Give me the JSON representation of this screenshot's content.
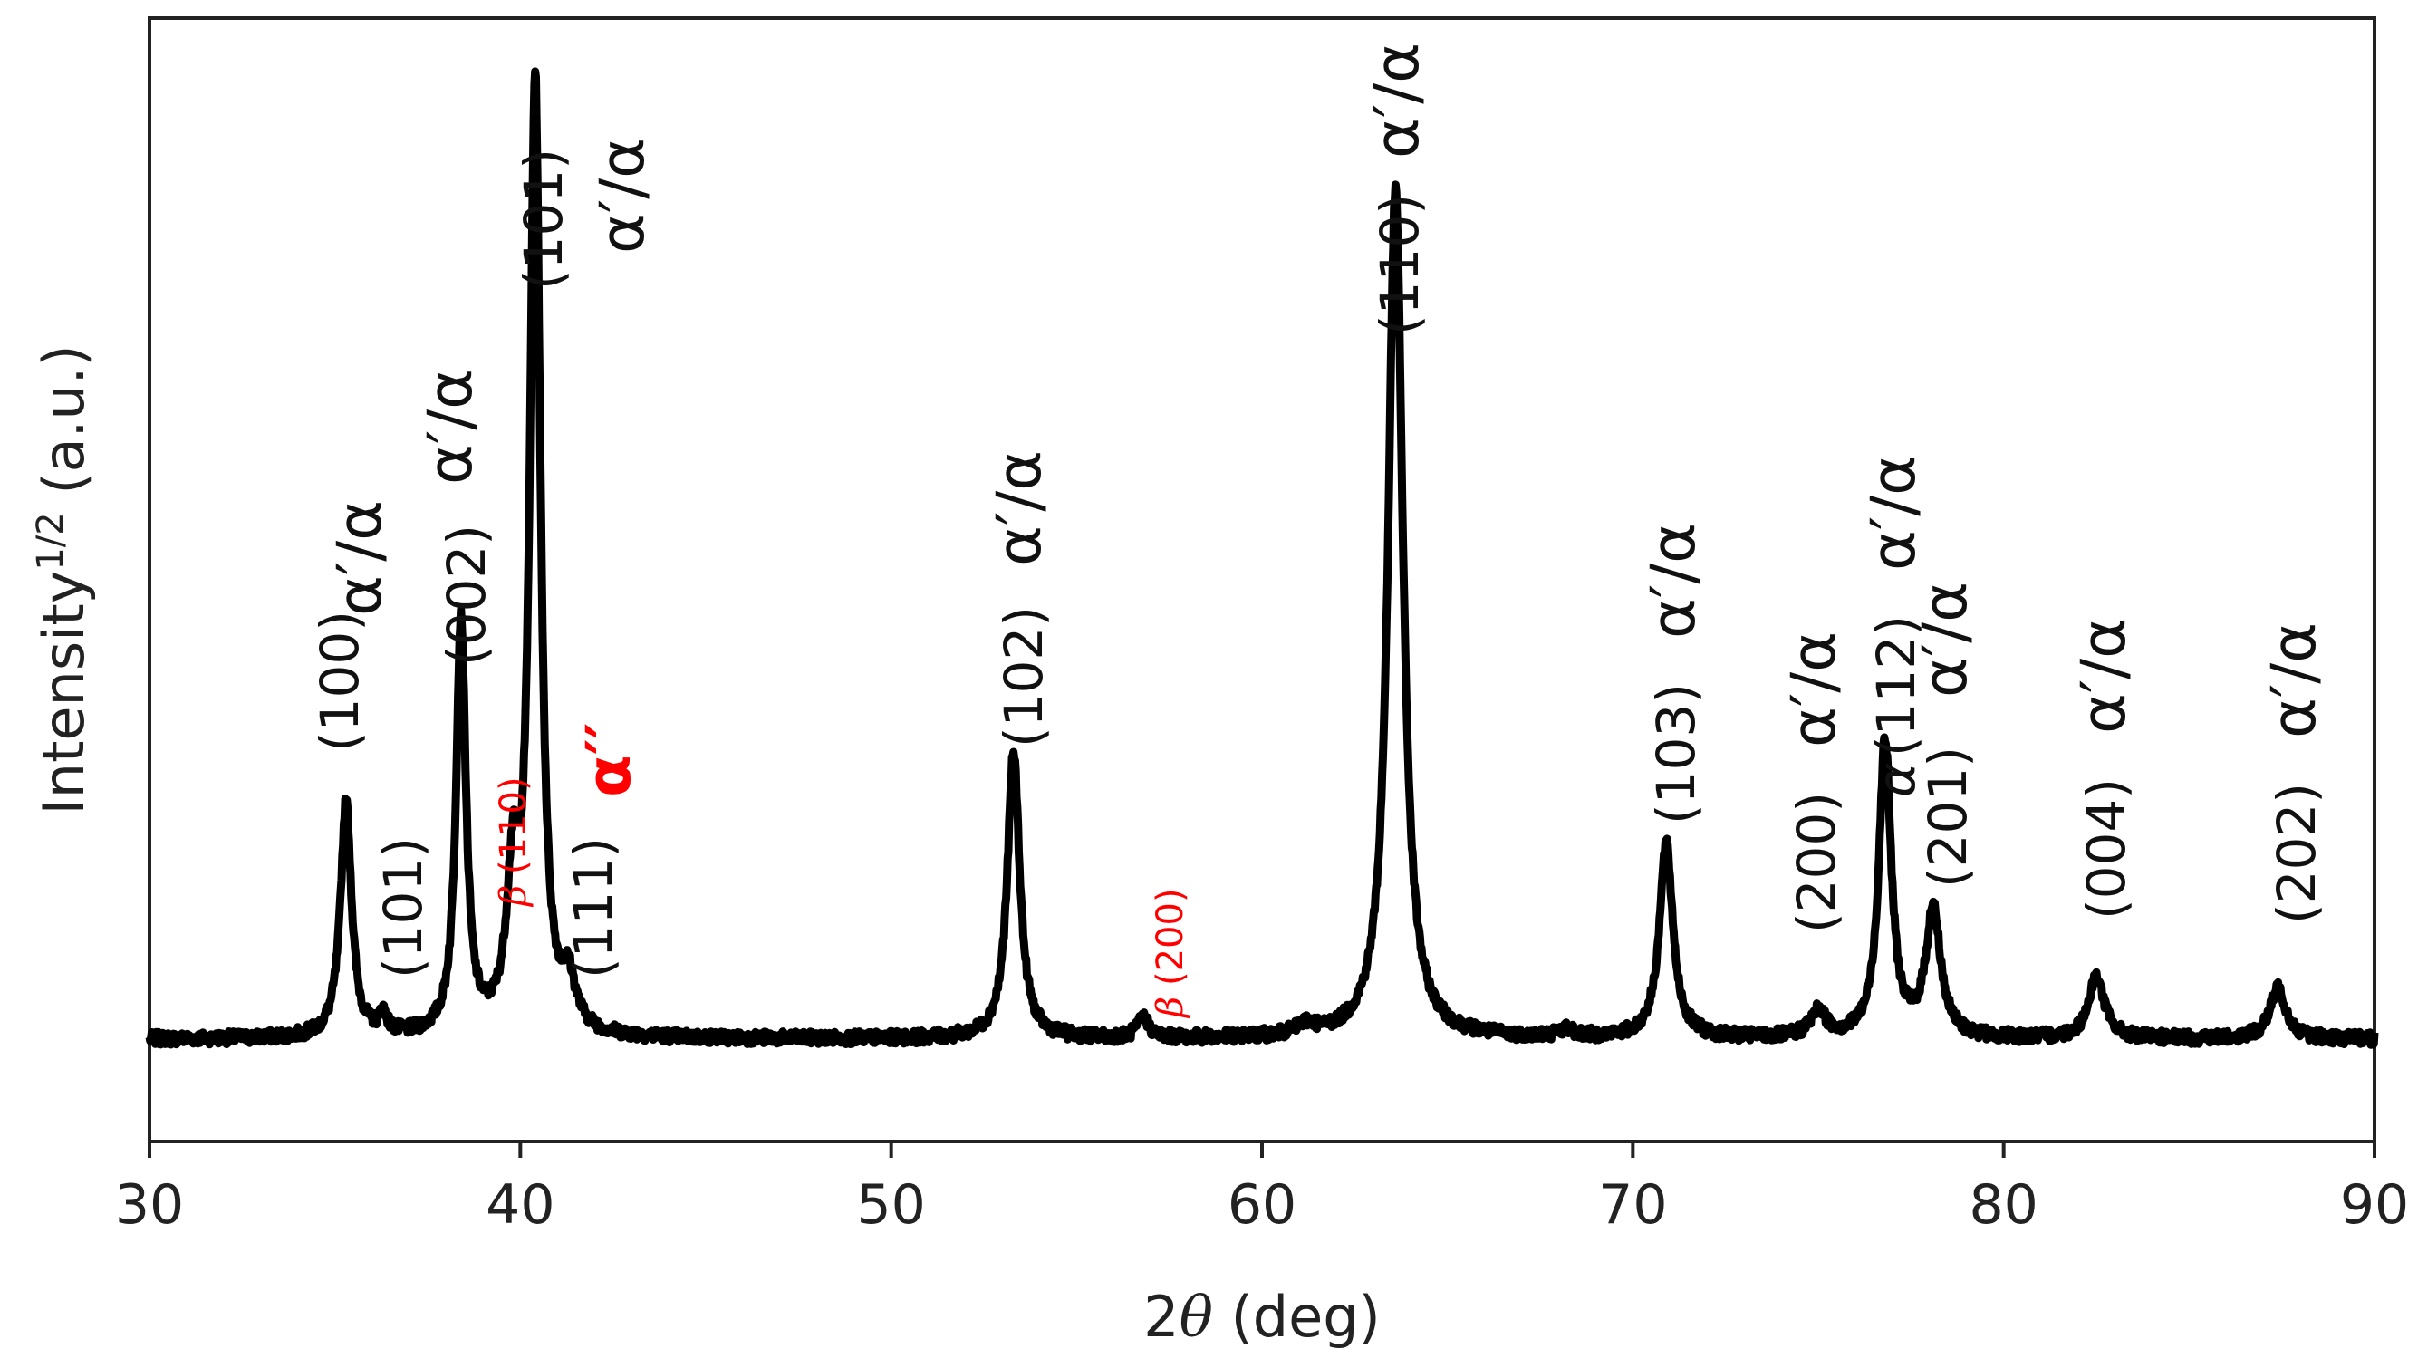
{
  "chart_data": {
    "type": "line",
    "xlabel": "2θ (deg)",
    "xlabel_parts": {
      "num": "2",
      "var": "θ",
      "unit": " (deg)"
    },
    "ylabel_parts": {
      "base": "Intensity",
      "sup": "1/2",
      "unit": " (a.u.)"
    },
    "xlim": [
      30,
      90
    ],
    "ylim": [
      -2,
      20
    ],
    "x_ticks": [
      "30",
      "40",
      "50",
      "60",
      "70",
      "80",
      "90"
    ],
    "y_ticks": [],
    "grid": false,
    "legend": "none",
    "baseline": 0,
    "series": [
      {
        "color": "#000000",
        "peaks": [
          {
            "x": 35.3,
            "y": 4.6,
            "w": 0.18
          },
          {
            "x": 36.3,
            "y": 0.4,
            "w": 0.12
          },
          {
            "x": 38.4,
            "y": 8.1,
            "w": 0.16
          },
          {
            "x": 39.8,
            "y": 2.8,
            "w": 0.2
          },
          {
            "x": 40.4,
            "y": 18.6,
            "w": 0.17
          },
          {
            "x": 41.3,
            "y": 0.9,
            "w": 0.22
          },
          {
            "x": 53.3,
            "y": 5.6,
            "w": 0.2
          },
          {
            "x": 56.8,
            "y": 0.4,
            "w": 0.18
          },
          {
            "x": 61.2,
            "y": 0.2,
            "w": 0.3
          },
          {
            "x": 63.6,
            "y": 16.6,
            "w": 0.24
          },
          {
            "x": 68.2,
            "y": 0.15,
            "w": 0.25
          },
          {
            "x": 70.9,
            "y": 3.8,
            "w": 0.22
          },
          {
            "x": 75.0,
            "y": 0.5,
            "w": 0.25
          },
          {
            "x": 76.8,
            "y": 5.8,
            "w": 0.2
          },
          {
            "x": 78.1,
            "y": 2.5,
            "w": 0.24
          },
          {
            "x": 82.5,
            "y": 1.2,
            "w": 0.26
          },
          {
            "x": 87.4,
            "y": 1.0,
            "w": 0.26
          }
        ]
      }
    ],
    "annotations": [
      {
        "text": "(100)",
        "color": "#111111",
        "size": 58
      },
      {
        "text": "α′/α",
        "color": "#111111",
        "size": 68
      },
      {
        "text": "(101)",
        "color": "#111111",
        "size": 58
      },
      {
        "text": "(002)",
        "color": "#111111",
        "size": 58
      },
      {
        "text": "α′/α",
        "color": "#111111",
        "size": 68
      },
      {
        "text": "(101)",
        "color": "#111111",
        "size": 58
      },
      {
        "text": "α′/α",
        "color": "#111111",
        "size": 68
      },
      {
        "text": "β",
        "color": "#ff0000",
        "size": 40
      },
      {
        "text": "(110)",
        "color": "#ff0000",
        "size": 40
      },
      {
        "text": "(111)",
        "color": "#111111",
        "size": 58
      },
      {
        "text": "α′′",
        "color": "#ff0000",
        "size": 68
      },
      {
        "text": "(102)",
        "color": "#111111",
        "size": 58
      },
      {
        "text": "α′/α",
        "color": "#111111",
        "size": 68
      },
      {
        "text": "β",
        "color": "#ff0000",
        "size": 40
      },
      {
        "text": "(200)",
        "color": "#ff0000",
        "size": 40
      },
      {
        "text": "(110)",
        "color": "#111111",
        "size": 58
      },
      {
        "text": "α′/α",
        "color": "#111111",
        "size": 68
      },
      {
        "text": "(103)",
        "color": "#111111",
        "size": 58
      },
      {
        "text": "α′/α",
        "color": "#111111",
        "size": 68
      },
      {
        "text": "(200)",
        "color": "#111111",
        "size": 58
      },
      {
        "text": "α′/α",
        "color": "#111111",
        "size": 68
      },
      {
        "text": "α",
        "color": "#111111",
        "size": 58
      },
      {
        "text": "(112)",
        "color": "#111111",
        "size": 58
      },
      {
        "text": "α′/α",
        "color": "#111111",
        "size": 68
      },
      {
        "text": "(201)",
        "color": "#111111",
        "size": 58
      },
      {
        "text": "α′/α",
        "color": "#111111",
        "size": 68
      },
      {
        "text": "(004)",
        "color": "#111111",
        "size": 58
      },
      {
        "text": "α′/α",
        "color": "#111111",
        "size": 68
      },
      {
        "text": "(202)",
        "color": "#111111",
        "size": 58
      },
      {
        "text": "α′/α",
        "color": "#111111",
        "size": 68
      }
    ]
  }
}
